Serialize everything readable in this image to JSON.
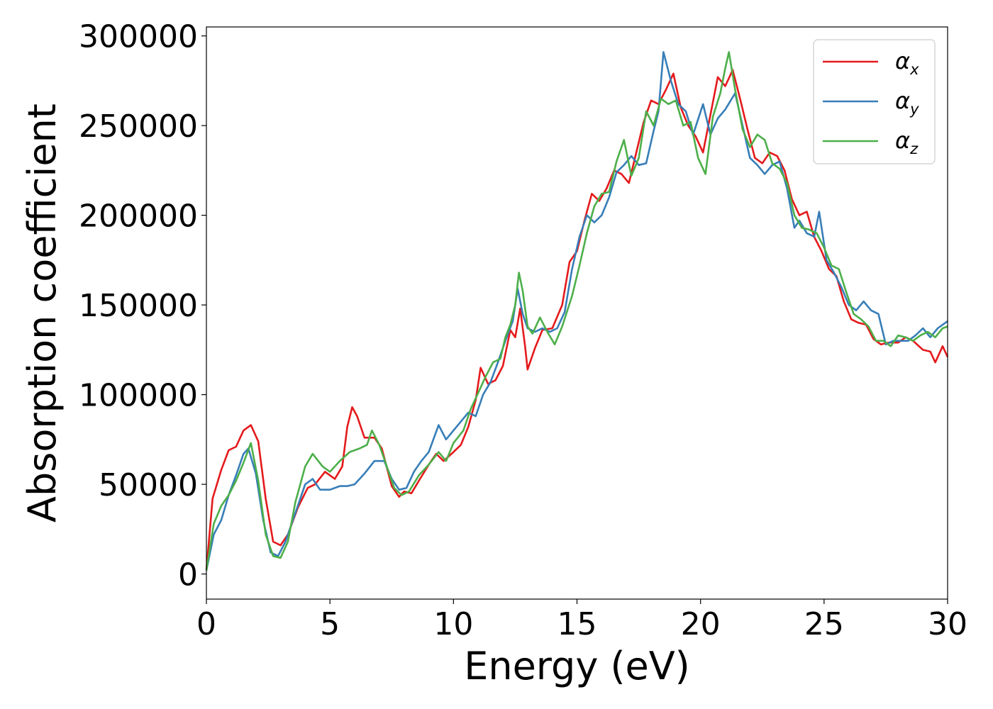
{
  "chart_data": {
    "type": "line",
    "xlabel": "Energy (eV)",
    "ylabel": "Absorption coefficient",
    "xlim": [
      0,
      30
    ],
    "ylim": [
      -14000,
      305000
    ],
    "xticks": [
      "0",
      "5",
      "10",
      "15",
      "20",
      "25",
      "30"
    ],
    "yticks": [
      "0",
      "50000",
      "100000",
      "150000",
      "200000",
      "250000",
      "300000"
    ],
    "grid": false,
    "legend_position": "top-right",
    "series": [
      {
        "name": "α_x",
        "symbol": "α",
        "subscript": "x",
        "color": "#e41a1c",
        "points": [
          [
            0,
            2000
          ],
          [
            0.25,
            42000
          ],
          [
            0.6,
            58000
          ],
          [
            0.9,
            69000
          ],
          [
            1.2,
            71000
          ],
          [
            1.5,
            80000
          ],
          [
            1.8,
            83000
          ],
          [
            2.1,
            74000
          ],
          [
            2.4,
            42000
          ],
          [
            2.7,
            18000
          ],
          [
            3.0,
            16000
          ],
          [
            3.3,
            22000
          ],
          [
            3.7,
            37000
          ],
          [
            4.1,
            48000
          ],
          [
            4.4,
            50000
          ],
          [
            4.8,
            57000
          ],
          [
            5.0,
            55000
          ],
          [
            5.2,
            53000
          ],
          [
            5.5,
            60000
          ],
          [
            5.7,
            82000
          ],
          [
            5.9,
            93000
          ],
          [
            6.1,
            88000
          ],
          [
            6.4,
            76000
          ],
          [
            6.8,
            76000
          ],
          [
            7.1,
            70000
          ],
          [
            7.5,
            49000
          ],
          [
            7.8,
            43000
          ],
          [
            8.0,
            46000
          ],
          [
            8.3,
            45000
          ],
          [
            8.6,
            52000
          ],
          [
            9.0,
            61000
          ],
          [
            9.3,
            67000
          ],
          [
            9.6,
            63000
          ],
          [
            10.0,
            68000
          ],
          [
            10.3,
            72000
          ],
          [
            10.6,
            82000
          ],
          [
            10.9,
            97000
          ],
          [
            11.1,
            115000
          ],
          [
            11.4,
            106000
          ],
          [
            11.7,
            108000
          ],
          [
            12.0,
            116000
          ],
          [
            12.3,
            136000
          ],
          [
            12.5,
            132000
          ],
          [
            12.7,
            148000
          ],
          [
            12.9,
            127000
          ],
          [
            13.0,
            114000
          ],
          [
            13.3,
            126000
          ],
          [
            13.6,
            136000
          ],
          [
            14.0,
            137000
          ],
          [
            14.4,
            150000
          ],
          [
            14.7,
            174000
          ],
          [
            15.0,
            180000
          ],
          [
            15.3,
            197000
          ],
          [
            15.6,
            212000
          ],
          [
            15.9,
            208000
          ],
          [
            16.2,
            215000
          ],
          [
            16.5,
            225000
          ],
          [
            16.8,
            223000
          ],
          [
            17.1,
            218000
          ],
          [
            17.4,
            235000
          ],
          [
            17.7,
            252000
          ],
          [
            18.0,
            264000
          ],
          [
            18.3,
            262000
          ],
          [
            18.6,
            270000
          ],
          [
            18.9,
            279000
          ],
          [
            19.2,
            260000
          ],
          [
            19.5,
            250000
          ],
          [
            19.8,
            244000
          ],
          [
            20.1,
            235000
          ],
          [
            20.4,
            256000
          ],
          [
            20.7,
            277000
          ],
          [
            21.0,
            272000
          ],
          [
            21.3,
            281000
          ],
          [
            21.6,
            265000
          ],
          [
            21.9,
            248000
          ],
          [
            22.2,
            232000
          ],
          [
            22.5,
            229000
          ],
          [
            22.8,
            235000
          ],
          [
            23.1,
            233000
          ],
          [
            23.4,
            225000
          ],
          [
            23.7,
            209000
          ],
          [
            24.0,
            200000
          ],
          [
            24.3,
            202000
          ],
          [
            24.6,
            188000
          ],
          [
            24.9,
            180000
          ],
          [
            25.2,
            170000
          ],
          [
            25.5,
            166000
          ],
          [
            25.8,
            152000
          ],
          [
            26.1,
            142000
          ],
          [
            26.4,
            140000
          ],
          [
            26.7,
            139000
          ],
          [
            27.0,
            131000
          ],
          [
            27.3,
            128000
          ],
          [
            27.6,
            129000
          ],
          [
            28.0,
            129000
          ],
          [
            28.3,
            132000
          ],
          [
            28.6,
            130000
          ],
          [
            29.0,
            125000
          ],
          [
            29.3,
            124000
          ],
          [
            29.5,
            118000
          ],
          [
            29.8,
            127000
          ],
          [
            30,
            121000
          ]
        ]
      },
      {
        "name": "α_y",
        "symbol": "α",
        "subscript": "y",
        "color": "#377eb8",
        "points": [
          [
            0,
            2000
          ],
          [
            0.3,
            22000
          ],
          [
            0.6,
            30000
          ],
          [
            0.9,
            44000
          ],
          [
            1.2,
            55000
          ],
          [
            1.5,
            67000
          ],
          [
            1.7,
            70000
          ],
          [
            2.0,
            56000
          ],
          [
            2.3,
            30000
          ],
          [
            2.6,
            12000
          ],
          [
            2.9,
            10000
          ],
          [
            3.2,
            18000
          ],
          [
            3.6,
            34000
          ],
          [
            4.0,
            50000
          ],
          [
            4.3,
            53000
          ],
          [
            4.6,
            47000
          ],
          [
            5.0,
            47000
          ],
          [
            5.4,
            49000
          ],
          [
            5.7,
            49000
          ],
          [
            6.0,
            50000
          ],
          [
            6.4,
            56000
          ],
          [
            6.8,
            63000
          ],
          [
            7.2,
            63000
          ],
          [
            7.5,
            53000
          ],
          [
            7.8,
            47000
          ],
          [
            8.1,
            48000
          ],
          [
            8.4,
            57000
          ],
          [
            8.7,
            63000
          ],
          [
            9.0,
            68000
          ],
          [
            9.4,
            83000
          ],
          [
            9.7,
            75000
          ],
          [
            10.0,
            80000
          ],
          [
            10.3,
            85000
          ],
          [
            10.6,
            90000
          ],
          [
            10.9,
            88000
          ],
          [
            11.2,
            100000
          ],
          [
            11.5,
            107000
          ],
          [
            11.8,
            118000
          ],
          [
            12.1,
            130000
          ],
          [
            12.4,
            141000
          ],
          [
            12.6,
            159000
          ],
          [
            12.8,
            145000
          ],
          [
            13.0,
            137000
          ],
          [
            13.3,
            135000
          ],
          [
            13.6,
            137000
          ],
          [
            13.9,
            135000
          ],
          [
            14.2,
            137000
          ],
          [
            14.5,
            146000
          ],
          [
            14.8,
            170000
          ],
          [
            15.1,
            188000
          ],
          [
            15.4,
            200000
          ],
          [
            15.7,
            196000
          ],
          [
            16.0,
            200000
          ],
          [
            16.3,
            210000
          ],
          [
            16.6,
            224000
          ],
          [
            16.9,
            228000
          ],
          [
            17.2,
            233000
          ],
          [
            17.5,
            228000
          ],
          [
            17.8,
            229000
          ],
          [
            18.1,
            247000
          ],
          [
            18.3,
            258000
          ],
          [
            18.5,
            291000
          ],
          [
            18.8,
            275000
          ],
          [
            19.1,
            262000
          ],
          [
            19.4,
            258000
          ],
          [
            19.7,
            245000
          ],
          [
            20.1,
            262000
          ],
          [
            20.4,
            245000
          ],
          [
            20.7,
            254000
          ],
          [
            21.0,
            259000
          ],
          [
            21.4,
            268000
          ],
          [
            21.7,
            250000
          ],
          [
            22.0,
            232000
          ],
          [
            22.3,
            228000
          ],
          [
            22.6,
            223000
          ],
          [
            22.9,
            228000
          ],
          [
            23.2,
            230000
          ],
          [
            23.5,
            215000
          ],
          [
            23.8,
            193000
          ],
          [
            24.0,
            197000
          ],
          [
            24.3,
            190000
          ],
          [
            24.6,
            188000
          ],
          [
            24.8,
            202000
          ],
          [
            25.1,
            175000
          ],
          [
            25.4,
            168000
          ],
          [
            25.7,
            160000
          ],
          [
            26.0,
            150000
          ],
          [
            26.3,
            147000
          ],
          [
            26.6,
            152000
          ],
          [
            26.9,
            147000
          ],
          [
            27.2,
            145000
          ],
          [
            27.5,
            128000
          ],
          [
            27.8,
            130000
          ],
          [
            28.1,
            130000
          ],
          [
            28.4,
            130000
          ],
          [
            28.7,
            133000
          ],
          [
            29.0,
            137000
          ],
          [
            29.3,
            132000
          ],
          [
            29.6,
            137000
          ],
          [
            30,
            141000
          ]
        ]
      },
      {
        "name": "α_z",
        "symbol": "α",
        "subscript": "z",
        "color": "#4daf4a",
        "points": [
          [
            0,
            2000
          ],
          [
            0.3,
            28000
          ],
          [
            0.6,
            38000
          ],
          [
            0.9,
            44000
          ],
          [
            1.2,
            52000
          ],
          [
            1.5,
            62000
          ],
          [
            1.8,
            73000
          ],
          [
            2.1,
            52000
          ],
          [
            2.4,
            22000
          ],
          [
            2.7,
            10000
          ],
          [
            3.0,
            9000
          ],
          [
            3.3,
            18000
          ],
          [
            3.6,
            40000
          ],
          [
            4.0,
            60000
          ],
          [
            4.3,
            67000
          ],
          [
            4.7,
            60000
          ],
          [
            5.0,
            57000
          ],
          [
            5.4,
            63000
          ],
          [
            5.8,
            68000
          ],
          [
            6.2,
            70000
          ],
          [
            6.5,
            72000
          ],
          [
            6.7,
            80000
          ],
          [
            7.0,
            72000
          ],
          [
            7.3,
            60000
          ],
          [
            7.6,
            48000
          ],
          [
            7.9,
            44000
          ],
          [
            8.2,
            46000
          ],
          [
            8.6,
            55000
          ],
          [
            9.0,
            61000
          ],
          [
            9.4,
            68000
          ],
          [
            9.7,
            63000
          ],
          [
            10.0,
            73000
          ],
          [
            10.4,
            80000
          ],
          [
            10.7,
            92000
          ],
          [
            11.0,
            101000
          ],
          [
            11.3,
            110000
          ],
          [
            11.6,
            118000
          ],
          [
            11.9,
            120000
          ],
          [
            12.1,
            132000
          ],
          [
            12.3,
            139000
          ],
          [
            12.5,
            150000
          ],
          [
            12.65,
            168000
          ],
          [
            12.8,
            158000
          ],
          [
            13.0,
            138000
          ],
          [
            13.2,
            134000
          ],
          [
            13.5,
            143000
          ],
          [
            13.8,
            135000
          ],
          [
            14.1,
            128000
          ],
          [
            14.4,
            138000
          ],
          [
            14.8,
            155000
          ],
          [
            15.1,
            172000
          ],
          [
            15.4,
            190000
          ],
          [
            15.7,
            205000
          ],
          [
            16.0,
            212000
          ],
          [
            16.3,
            213000
          ],
          [
            16.6,
            230000
          ],
          [
            16.9,
            242000
          ],
          [
            17.2,
            222000
          ],
          [
            17.5,
            232000
          ],
          [
            17.8,
            258000
          ],
          [
            18.1,
            250000
          ],
          [
            18.4,
            265000
          ],
          [
            18.7,
            262000
          ],
          [
            19.0,
            264000
          ],
          [
            19.3,
            250000
          ],
          [
            19.6,
            252000
          ],
          [
            19.9,
            232000
          ],
          [
            20.2,
            223000
          ],
          [
            20.5,
            255000
          ],
          [
            20.8,
            268000
          ],
          [
            21.0,
            282000
          ],
          [
            21.15,
            291000
          ],
          [
            21.4,
            270000
          ],
          [
            21.7,
            248000
          ],
          [
            22.0,
            238000
          ],
          [
            22.3,
            245000
          ],
          [
            22.6,
            242000
          ],
          [
            22.9,
            229000
          ],
          [
            23.2,
            226000
          ],
          [
            23.5,
            218000
          ],
          [
            23.8,
            200000
          ],
          [
            24.1,
            193000
          ],
          [
            24.4,
            192000
          ],
          [
            24.7,
            190000
          ],
          [
            25.0,
            182000
          ],
          [
            25.3,
            172000
          ],
          [
            25.6,
            170000
          ],
          [
            25.9,
            157000
          ],
          [
            26.2,
            145000
          ],
          [
            26.5,
            142000
          ],
          [
            26.8,
            138000
          ],
          [
            27.1,
            130000
          ],
          [
            27.4,
            130000
          ],
          [
            27.7,
            127000
          ],
          [
            28.0,
            133000
          ],
          [
            28.3,
            132000
          ],
          [
            28.6,
            130000
          ],
          [
            28.9,
            133000
          ],
          [
            29.2,
            135000
          ],
          [
            29.5,
            132000
          ],
          [
            29.8,
            137000
          ],
          [
            30,
            138000
          ]
        ]
      }
    ]
  }
}
